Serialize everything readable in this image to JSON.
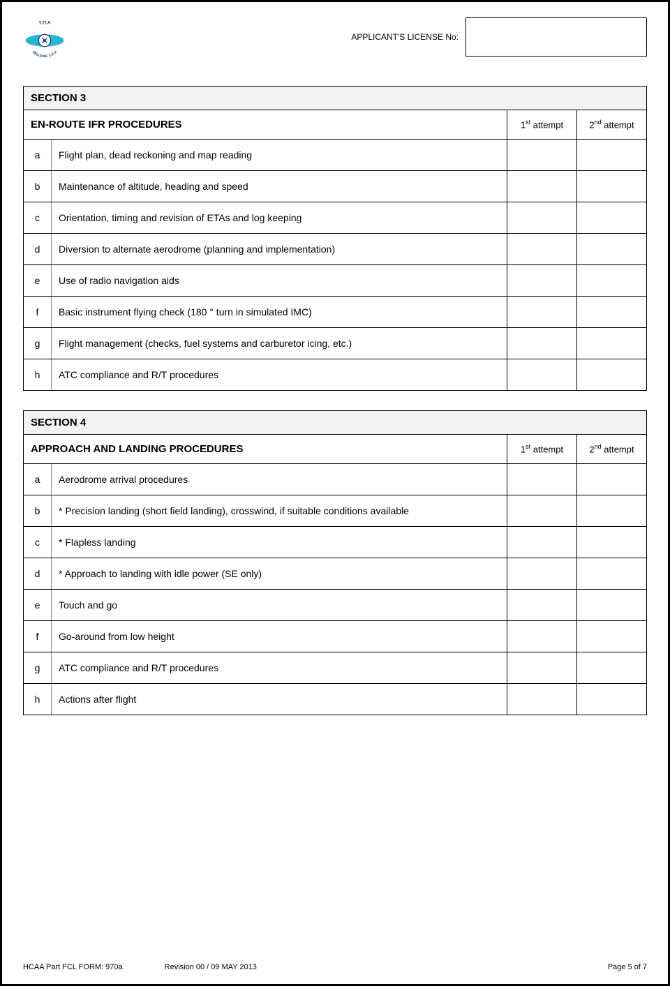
{
  "header": {
    "license_label": "APPLICANT'S LICENSE No:",
    "license_value": "",
    "logo": {
      "top_text": "Y.Π.A",
      "bottom_text": "HELLENIC C.A.A",
      "wing_color": "#29b5cf",
      "text_color": "#1a3b6e"
    }
  },
  "section3": {
    "title": "SECTION 3",
    "name": "EN-ROUTE IFR PROCEDURES",
    "attempt1_html": "1<span class='sup'>st</span> attempt",
    "attempt2_html": "2<span class='sup'>nd</span> attempt",
    "rows": [
      {
        "id": "a",
        "text": "Flight plan, dead reckoning and map reading"
      },
      {
        "id": "b",
        "text": "Maintenance of altitude, heading and speed"
      },
      {
        "id": "c",
        "text": "Orientation, timing and revision of ETAs and log keeping"
      },
      {
        "id": "d",
        "text": "Diversion to alternate aerodrome (planning and implementation)"
      },
      {
        "id": "e",
        "text": "Use of radio navigation aids"
      },
      {
        "id": "f",
        "text": "Basic instrument flying check (180 ° turn in simulated IMC)"
      },
      {
        "id": "g",
        "text": "Flight management (checks, fuel systems and carburetor icing, etc.)"
      },
      {
        "id": "h",
        "text": "ATC compliance and R/T procedures"
      }
    ]
  },
  "section4": {
    "title": "SECTION 4",
    "name": "APPROACH AND LANDING PROCEDURES",
    "attempt1_html": "1<span class='sup'>st</span> attempt",
    "attempt2_html": "2<span class='sup'>nd</span> attempt",
    "rows": [
      {
        "id": "a",
        "text": "Aerodrome arrival procedures"
      },
      {
        "id": "b",
        "text": "* Precision landing (short field landing), crosswind, if suitable conditions available"
      },
      {
        "id": "c",
        "text": "* Flapless landing"
      },
      {
        "id": "d",
        "text": "* Approach to landing with idle power (SE only)"
      },
      {
        "id": "e",
        "text": "Touch and go"
      },
      {
        "id": "f",
        "text": "Go-around from low height"
      },
      {
        "id": "g",
        "text": "ATC compliance and R/T procedures"
      },
      {
        "id": "h",
        "text": "Actions after flight"
      }
    ]
  },
  "footer": {
    "form": "HCAA Part FCL FORM: 970a",
    "revision": "Revision 00 / 09 MAY 2013",
    "page": "Page 5 of 7"
  }
}
